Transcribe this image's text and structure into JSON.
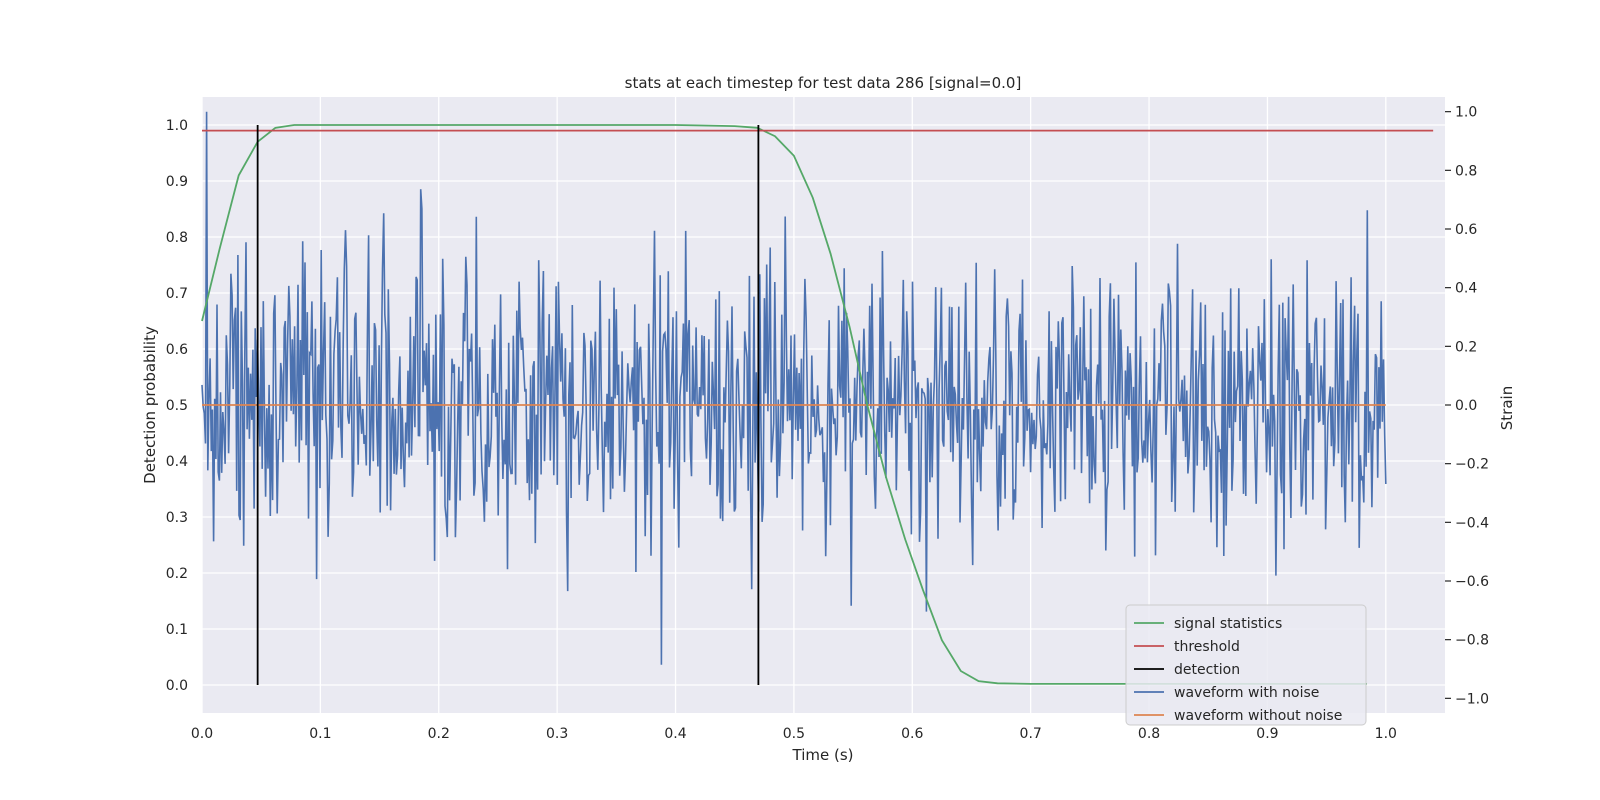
{
  "chart_data": {
    "type": "line",
    "title": "stats at each timestep for test data 286 [signal=0.0]",
    "xlabel": "Time (s)",
    "ylabel_left": "Detection probability",
    "ylabel_right": "Strain",
    "xlim": [
      0.0,
      1.05
    ],
    "ylim_left": [
      -0.05,
      1.05
    ],
    "ylim_right": [
      -1.05,
      1.05
    ],
    "x_ticks": [
      0.0,
      0.1,
      0.2,
      0.3,
      0.4,
      0.5,
      0.6,
      0.7,
      0.8,
      0.9,
      1.0
    ],
    "x_tick_labels": [
      "0.0",
      "0.1",
      "0.2",
      "0.3",
      "0.4",
      "0.5",
      "0.6",
      "0.7",
      "0.8",
      "0.9",
      "1.0"
    ],
    "y_ticks_left": [
      0.0,
      0.1,
      0.2,
      0.3,
      0.4,
      0.5,
      0.6,
      0.7,
      0.8,
      0.9,
      1.0
    ],
    "y_tick_labels_left": [
      "0.0",
      "0.1",
      "0.2",
      "0.3",
      "0.4",
      "0.5",
      "0.6",
      "0.7",
      "0.8",
      "0.9",
      "1.0"
    ],
    "y_ticks_right": [
      -1.0,
      -0.8,
      -0.6,
      -0.4,
      -0.2,
      0.0,
      0.2,
      0.4,
      0.6,
      0.8,
      1.0
    ],
    "y_tick_labels_right": [
      "−1.0",
      "−0.8",
      "−0.6",
      "−0.4",
      "−0.2",
      "0.0",
      "0.2",
      "0.4",
      "0.6",
      "0.8",
      "1.0"
    ],
    "grid": true,
    "legend_position": "lower-right",
    "colors": {
      "signal_statistics": "#55a868",
      "threshold": "#c44e52",
      "detection": "#000000",
      "waveform_with_noise": "#4c72b0",
      "waveform_without_noise": "#dd8452",
      "plot_bg": "#eaeaf2",
      "grid": "#ffffff"
    },
    "series": [
      {
        "name": "signal statistics",
        "axis": "left",
        "x": [
          0.0,
          0.015,
          0.031,
          0.047,
          0.062,
          0.078,
          0.1,
          0.2,
          0.3,
          0.4,
          0.45,
          0.469,
          0.484,
          0.5,
          0.516,
          0.531,
          0.547,
          0.562,
          0.578,
          0.594,
          0.609,
          0.625,
          0.641,
          0.656,
          0.672,
          0.7,
          0.8,
          0.9,
          0.984
        ],
        "y": [
          0.65,
          0.78,
          0.91,
          0.97,
          0.995,
          1.0,
          1.0,
          1.0,
          1.0,
          1.0,
          0.998,
          0.995,
          0.98,
          0.945,
          0.87,
          0.77,
          0.64,
          0.5,
          0.37,
          0.26,
          0.17,
          0.08,
          0.025,
          0.007,
          0.003,
          0.002,
          0.002,
          0.002,
          0.002
        ]
      },
      {
        "name": "threshold",
        "axis": "left",
        "x": [
          0.0,
          1.04
        ],
        "y": [
          0.99,
          0.99
        ]
      },
      {
        "name": "detection",
        "axis": "left",
        "x_positions": [
          0.047,
          0.47
        ],
        "y_range": [
          0.0,
          1.0
        ]
      },
      {
        "name": "waveform with noise",
        "axis": "right",
        "x_range": [
          0.0,
          1.0
        ],
        "samples": 1024,
        "std": 0.25,
        "y_range_observed": [
          -0.95,
          1.0
        ]
      },
      {
        "name": "waveform without noise",
        "axis": "right",
        "x": [
          0.0,
          1.0
        ],
        "y": [
          0.0,
          0.0
        ]
      }
    ]
  }
}
